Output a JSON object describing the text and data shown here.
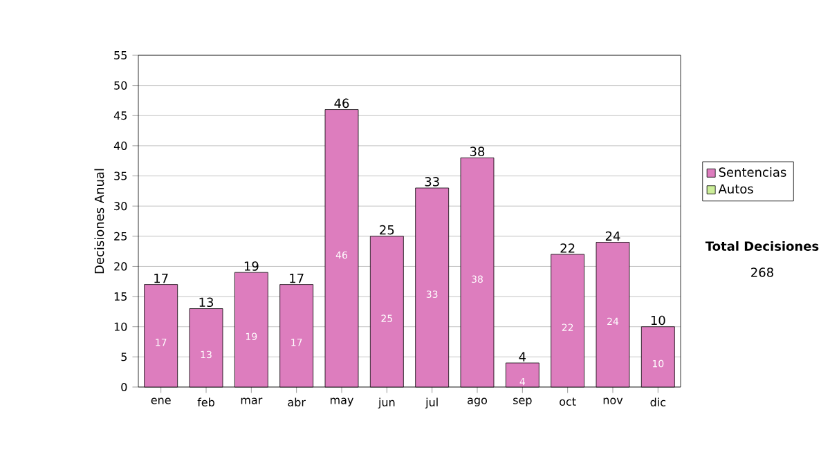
{
  "chart_data": {
    "type": "bar",
    "stacked": true,
    "ylabel": "Decisiones Anual",
    "categories": [
      "ene",
      "feb",
      "mar",
      "abr",
      "may",
      "jun",
      "jul",
      "ago",
      "sep",
      "oct",
      "nov",
      "dic"
    ],
    "series": [
      {
        "name": "Sentencias",
        "color": "#dd7dbe",
        "values": [
          17,
          13,
          19,
          17,
          46,
          25,
          33,
          38,
          4,
          22,
          24,
          10
        ]
      },
      {
        "name": "Autos",
        "color": "#ccee99",
        "values": [
          null,
          null,
          null,
          null,
          null,
          null,
          null,
          null,
          null,
          null,
          null,
          null
        ]
      }
    ],
    "totals": [
      "17",
      "13",
      "19",
      "17",
      "46",
      "25",
      "33",
      "38",
      "4",
      "22",
      "24",
      "10"
    ],
    "data_labels": true,
    "ylim": [
      0,
      55
    ],
    "yticks": [
      0,
      5,
      10,
      15,
      20,
      25,
      30,
      35,
      40,
      45,
      50,
      55
    ],
    "grid": "y",
    "legend": "right",
    "annotations": [
      "**Total Decisiones**",
      "268"
    ]
  }
}
